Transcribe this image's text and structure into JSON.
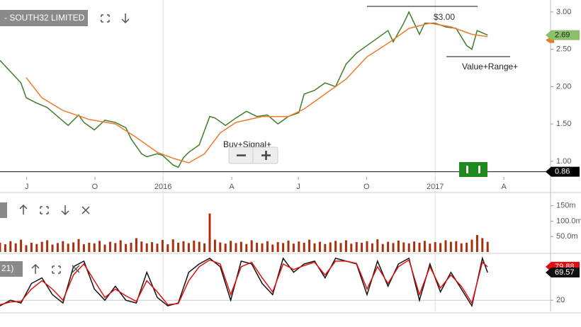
{
  "chart_data": [
    {
      "type": "price",
      "title": "- SOUTH32 LIMITED",
      "xlim": [
        0,
        105
      ],
      "xticks": [
        {
          "value": 5.1,
          "label": "J"
        },
        {
          "value": 18.1,
          "label": "O"
        },
        {
          "value": 31.1,
          "label": "2016"
        },
        {
          "value": 44.2,
          "label": "A"
        },
        {
          "value": 56.9,
          "label": "J"
        },
        {
          "value": 69.9,
          "label": "O"
        },
        {
          "value": 83,
          "label": "2017"
        },
        {
          "value": 96.1,
          "label": "A"
        }
      ],
      "ylim": [
        0.79,
        3.16
      ],
      "yticks": [
        {
          "value": 1,
          "label": "1.00"
        },
        {
          "value": 1.5,
          "label": "1.50"
        },
        {
          "value": 2,
          "label": "2.00"
        },
        {
          "value": 2.5,
          "label": "2.50"
        },
        {
          "value": 3,
          "label": "3.00"
        }
      ],
      "series": [
        {
          "color": "#3f7d2a",
          "last_label": "2.69",
          "tag_color": "#8bbf6a",
          "x": [
            0,
            2,
            4,
            5,
            7,
            9,
            11,
            13,
            15,
            16,
            18,
            20,
            22,
            24,
            25,
            27,
            28,
            30,
            31,
            33,
            34,
            35,
            36,
            38,
            40,
            41,
            43,
            45,
            47,
            49,
            51,
            53,
            55,
            57,
            58,
            60,
            62,
            64,
            66,
            68,
            70,
            72,
            74,
            75,
            77,
            78,
            80,
            81,
            83,
            85,
            87,
            89,
            90,
            91,
            93
          ],
          "values": [
            2.35,
            2.2,
            2.05,
            1.85,
            1.78,
            1.72,
            1.6,
            1.48,
            1.62,
            1.52,
            1.42,
            1.55,
            1.52,
            1.45,
            1.3,
            1.1,
            1.06,
            1.1,
            1.08,
            0.95,
            0.92,
            1.05,
            1.12,
            1.22,
            1.6,
            1.58,
            1.48,
            1.58,
            1.67,
            1.6,
            1.62,
            1.5,
            1.6,
            1.65,
            1.9,
            1.95,
            2.05,
            2.0,
            2.3,
            2.45,
            2.55,
            2.65,
            2.75,
            2.6,
            2.85,
            3.0,
            2.7,
            2.85,
            2.85,
            2.8,
            2.78,
            2.55,
            2.5,
            2.75,
            2.69
          ]
        },
        {
          "color": "#f07a2c",
          "x": [
            5,
            8,
            12,
            17,
            22,
            26,
            30,
            33,
            36,
            39,
            42,
            45,
            50,
            55,
            58,
            62,
            66,
            70,
            74,
            78,
            82,
            86,
            90,
            93
          ],
          "values": [
            2.12,
            1.85,
            1.68,
            1.56,
            1.5,
            1.32,
            1.12,
            1.04,
            0.98,
            1.1,
            1.38,
            1.52,
            1.6,
            1.6,
            1.7,
            1.9,
            2.1,
            2.4,
            2.58,
            2.78,
            2.85,
            2.8,
            2.7,
            2.67
          ]
        }
      ],
      "hline": {
        "value": 0.86,
        "label": "0.86"
      },
      "annotations": [
        "$3.00",
        "Value+Range+"
      ],
      "button": "Buy+Signal+"
    },
    {
      "type": "bar",
      "xlim": [
        0,
        105
      ],
      "ylim": [
        0,
        170
      ],
      "yticks": [
        {
          "value": 50,
          "label": "50.0m"
        },
        {
          "value": 100,
          "label": "100.0m"
        },
        {
          "value": 150,
          "label": "150m"
        }
      ],
      "color": "#a8300e",
      "x": [
        0,
        1,
        2,
        3,
        4,
        5,
        6,
        7,
        8,
        9,
        10,
        11,
        12,
        13,
        14,
        15,
        16,
        17,
        18,
        19,
        20,
        21,
        22,
        23,
        24,
        25,
        26,
        27,
        28,
        29,
        30,
        31,
        32,
        33,
        34,
        35,
        36,
        37,
        38,
        39,
        40,
        41,
        42,
        43,
        44,
        45,
        46,
        47,
        48,
        49,
        50,
        51,
        52,
        53,
        54,
        55,
        56,
        57,
        58,
        59,
        60,
        61,
        62,
        63,
        64,
        65,
        66,
        67,
        68,
        69,
        70,
        71,
        72,
        73,
        74,
        75,
        76,
        77,
        78,
        79,
        80,
        81,
        82,
        83,
        84,
        85,
        86,
        87,
        88,
        89,
        90,
        91,
        92,
        93
      ],
      "values": [
        30,
        25,
        35,
        28,
        40,
        22,
        30,
        26,
        33,
        38,
        24,
        29,
        35,
        27,
        31,
        42,
        25,
        30,
        28,
        36,
        24,
        33,
        29,
        38,
        26,
        30,
        45,
        34,
        28,
        32,
        27,
        39,
        25,
        41,
        30,
        35,
        29,
        37,
        33,
        28,
        125,
        40,
        31,
        27,
        36,
        29,
        33,
        26,
        38,
        30,
        28,
        35,
        24,
        32,
        29,
        37,
        27,
        34,
        30,
        40,
        28,
        33,
        26,
        31,
        36,
        29,
        38,
        27,
        32,
        30,
        35,
        28,
        41,
        26,
        33,
        29,
        37,
        31,
        28,
        34,
        30,
        36,
        27,
        32,
        29,
        38,
        33,
        35,
        28,
        30,
        40,
        55,
        45,
        33
      ]
    },
    {
      "type": "line",
      "title": "21)",
      "xlim": [
        0,
        105
      ],
      "ylim": [
        0,
        100
      ],
      "yticks": [
        20
      ],
      "series": [
        {
          "color": "#111111",
          "last_label": "69.57",
          "x": [
            0,
            2,
            4,
            6,
            8,
            10,
            12,
            14,
            16,
            18,
            20,
            22,
            24,
            26,
            28,
            30,
            32,
            34,
            36,
            38,
            40,
            42,
            44,
            46,
            48,
            50,
            52,
            54,
            56,
            58,
            60,
            62,
            64,
            66,
            68,
            70,
            72,
            74,
            76,
            78,
            80,
            82,
            84,
            86,
            88,
            90,
            92,
            93
          ],
          "values": [
            10,
            20,
            15,
            50,
            60,
            30,
            15,
            80,
            90,
            40,
            20,
            45,
            20,
            15,
            70,
            25,
            10,
            15,
            70,
            85,
            95,
            80,
            20,
            90,
            85,
            50,
            30,
            95,
            70,
            85,
            90,
            60,
            95,
            90,
            85,
            30,
            90,
            45,
            85,
            95,
            20,
            85,
            35,
            70,
            40,
            10,
            95,
            69.57
          ]
        },
        {
          "color": "#e01010",
          "last_label": "79.88",
          "x": [
            0,
            2,
            4,
            6,
            8,
            10,
            12,
            14,
            16,
            18,
            20,
            22,
            24,
            26,
            28,
            30,
            32,
            34,
            36,
            38,
            40,
            42,
            44,
            46,
            48,
            50,
            52,
            54,
            56,
            58,
            60,
            62,
            64,
            66,
            68,
            70,
            72,
            74,
            76,
            78,
            80,
            82,
            84,
            86,
            88,
            90,
            92,
            93
          ],
          "values": [
            12,
            17,
            18,
            40,
            55,
            40,
            20,
            65,
            85,
            55,
            25,
            40,
            28,
            18,
            55,
            35,
            12,
            14,
            55,
            80,
            92,
            85,
            30,
            80,
            88,
            60,
            35,
            85,
            75,
            82,
            88,
            65,
            90,
            90,
            86,
            40,
            80,
            50,
            80,
            92,
            30,
            80,
            42,
            65,
            45,
            15,
            88,
            79.88
          ]
        }
      ]
    }
  ]
}
